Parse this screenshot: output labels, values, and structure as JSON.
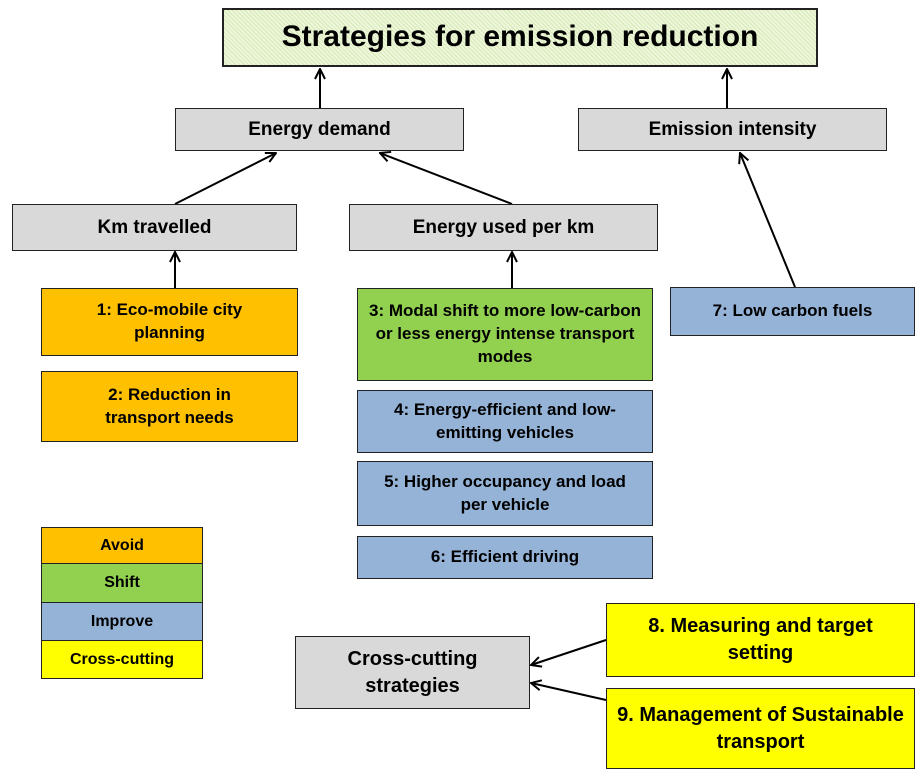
{
  "title": "Strategies for emission reduction",
  "nodes": [
    {
      "label": "Energy demand"
    },
    {
      "label": "Emission intensity"
    },
    {
      "label": "Km travelled"
    },
    {
      "label": "Energy used per km"
    },
    {
      "label": "1: Eco-mobile city planning"
    },
    {
      "label": "2: Reduction in transport needs"
    },
    {
      "label": "3: Modal shift to more low-carbon or less energy intense transport modes"
    },
    {
      "label": "4: Energy-efficient and low-emitting vehicles"
    },
    {
      "label": "5: Higher occupancy and load per vehicle"
    },
    {
      "label": "6: Efficient driving"
    },
    {
      "label": "7: Low carbon fuels"
    },
    {
      "label": "Cross-cutting strategies"
    },
    {
      "label": "8. Measuring and target setting"
    },
    {
      "label": "9. Management of Sustainable transport"
    }
  ],
  "legend": [
    {
      "label": "Avoid"
    },
    {
      "label": "Shift"
    },
    {
      "label": "Improve"
    },
    {
      "label": "Cross-cutting"
    }
  ]
}
